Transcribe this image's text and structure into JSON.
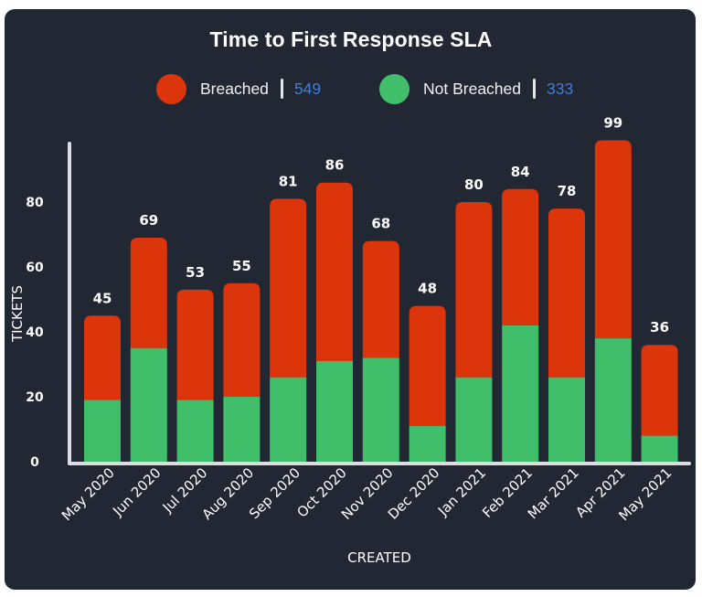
{
  "colors": {
    "background": "#212733",
    "breached": "#dc340b",
    "not_breached": "#41be6a",
    "count_text": "#3d7fe0",
    "axis": "#dcdde0",
    "text": "#ffffff"
  },
  "legend": {
    "items": [
      {
        "label": "Breached",
        "count": "549",
        "color": "#dc340b"
      },
      {
        "label": "Not Breached",
        "count": "333",
        "color": "#41be6a"
      }
    ]
  },
  "chart_data": {
    "type": "bar",
    "stacked": true,
    "title": "Time to First Response SLA",
    "xlabel": "CREATED",
    "ylabel": "TICKETS",
    "categories": [
      "May 2020",
      "Jun 2020",
      "Jul 2020",
      "Aug 2020",
      "Sep 2020",
      "Oct 2020",
      "Nov 2020",
      "Dec 2020",
      "Jan 2021",
      "Feb 2021",
      "Mar 2021",
      "Apr 2021",
      "May 2021"
    ],
    "series": [
      {
        "name": "Not Breached",
        "color": "#41be6a",
        "values": [
          19,
          35,
          19,
          20,
          26,
          31,
          32,
          11,
          26,
          42,
          26,
          38,
          8
        ]
      },
      {
        "name": "Breached",
        "color": "#dc340b",
        "values": [
          26,
          34,
          34,
          35,
          55,
          55,
          36,
          37,
          54,
          42,
          52,
          61,
          28
        ]
      }
    ],
    "totals": [
      45,
      69,
      53,
      55,
      81,
      86,
      68,
      48,
      80,
      84,
      78,
      99,
      36
    ],
    "yticks": [
      0,
      20,
      40,
      60,
      80
    ],
    "ylim": [
      0,
      99
    ],
    "grid": false,
    "legend_position": "top-center"
  }
}
